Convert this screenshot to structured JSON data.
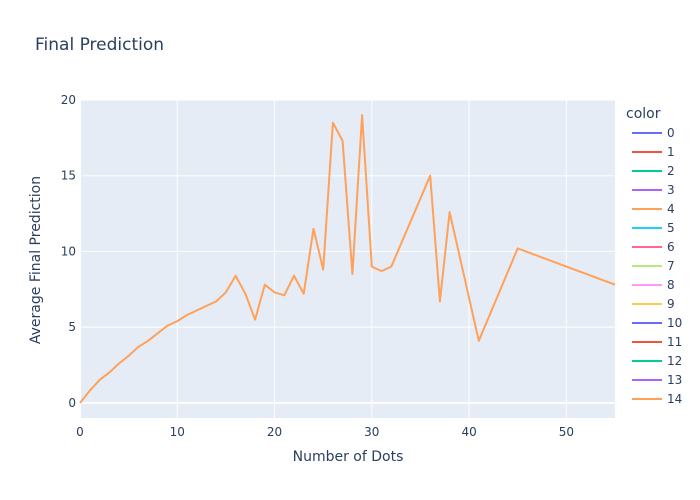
{
  "chart_data": {
    "type": "line",
    "title": "Final Prediction",
    "xlabel": "Number of Dots",
    "ylabel": "Average Final Prediction",
    "xlim": [
      0,
      55
    ],
    "ylim": [
      -1,
      20
    ],
    "x_ticks": [
      0,
      10,
      20,
      30,
      40,
      50
    ],
    "y_ticks": [
      0,
      5,
      10,
      15,
      20
    ],
    "grid": true,
    "legend": {
      "title": "color",
      "placement": "right",
      "entries": [
        {
          "name": "0",
          "color": "#636efa"
        },
        {
          "name": "1",
          "color": "#ef553b"
        },
        {
          "name": "2",
          "color": "#00cc96"
        },
        {
          "name": "3",
          "color": "#ab63fa"
        },
        {
          "name": "4",
          "color": "#ffa15a"
        },
        {
          "name": "5",
          "color": "#19d3f3"
        },
        {
          "name": "6",
          "color": "#ff6692"
        },
        {
          "name": "7",
          "color": "#b6e880"
        },
        {
          "name": "8",
          "color": "#ff97ff"
        },
        {
          "name": "9",
          "color": "#fecb52"
        },
        {
          "name": "10",
          "color": "#636efa"
        },
        {
          "name": "11",
          "color": "#ef553b"
        },
        {
          "name": "12",
          "color": "#00cc96"
        },
        {
          "name": "13",
          "color": "#ab63fa"
        },
        {
          "name": "14",
          "color": "#ffa15a"
        }
      ]
    },
    "series": [
      {
        "name": "14",
        "color": "#ffa15a",
        "x": [
          0,
          1,
          2,
          3,
          4,
          5,
          6,
          7,
          8,
          9,
          10,
          11,
          12,
          13,
          14,
          15,
          16,
          17,
          18,
          19,
          20,
          21,
          22,
          23,
          24,
          25,
          26,
          27,
          28,
          29,
          30,
          31,
          32,
          36,
          37,
          38,
          41,
          45,
          55
        ],
        "y": [
          0,
          0.8,
          1.5,
          2.0,
          2.6,
          3.1,
          3.7,
          4.1,
          4.6,
          5.1,
          5.4,
          5.8,
          6.1,
          6.4,
          6.7,
          7.3,
          8.4,
          7.2,
          5.5,
          7.8,
          7.3,
          7.1,
          8.4,
          7.2,
          11.5,
          8.8,
          18.5,
          17.3,
          8.5,
          19.0,
          9.0,
          8.7,
          9.0,
          15.0,
          6.7,
          12.6,
          4.1,
          10.2,
          7.8
        ]
      }
    ]
  }
}
